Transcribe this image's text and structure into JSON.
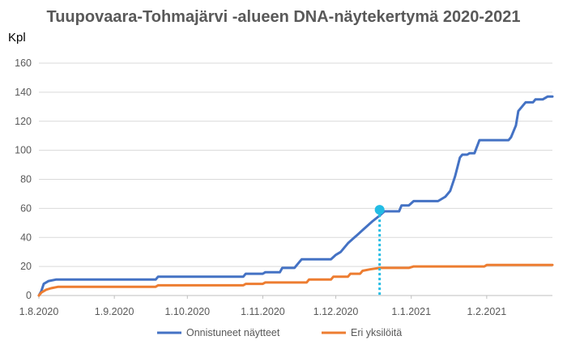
{
  "chart_data": {
    "type": "line",
    "title": "Tuupovaara-Tohmajärvi -alueen DNA-näytekertymä 2020-2021",
    "ylabel": "Kpl",
    "xlabel": "",
    "ylim": [
      0,
      160
    ],
    "yticks": [
      0,
      20,
      40,
      60,
      80,
      100,
      120,
      140,
      160
    ],
    "xlim": [
      "2020-08-01",
      "2021-02-28"
    ],
    "xticks": [
      {
        "date": "2020-08-01",
        "label": "1.8.2020"
      },
      {
        "date": "2020-09-01",
        "label": "1.9.2020"
      },
      {
        "date": "2020-10-01",
        "label": "1.10.2020"
      },
      {
        "date": "2020-11-01",
        "label": "1.11.2020"
      },
      {
        "date": "2020-12-01",
        "label": "1.12.2020"
      },
      {
        "date": "2021-01-01",
        "label": "1.1.2021"
      },
      {
        "date": "2021-02-01",
        "label": "1.2.2021"
      }
    ],
    "grid": true,
    "legend_position": "bottom",
    "series": [
      {
        "name": "Onnistuneet näytteet",
        "color": "#4472C4",
        "points": [
          [
            "2020-08-01",
            0
          ],
          [
            "2020-08-02",
            3
          ],
          [
            "2020-08-03",
            8
          ],
          [
            "2020-08-05",
            10
          ],
          [
            "2020-08-08",
            11
          ],
          [
            "2020-09-18",
            11
          ],
          [
            "2020-09-19",
            13
          ],
          [
            "2020-10-24",
            13
          ],
          [
            "2020-10-25",
            15
          ],
          [
            "2020-11-01",
            15
          ],
          [
            "2020-11-02",
            16
          ],
          [
            "2020-11-08",
            16
          ],
          [
            "2020-11-09",
            19
          ],
          [
            "2020-11-14",
            19
          ],
          [
            "2020-11-16",
            23
          ],
          [
            "2020-11-17",
            25
          ],
          [
            "2020-11-29",
            25
          ],
          [
            "2020-12-01",
            28
          ],
          [
            "2020-12-03",
            30
          ],
          [
            "2020-12-06",
            36
          ],
          [
            "2020-12-08",
            39
          ],
          [
            "2020-12-10",
            42
          ],
          [
            "2020-12-12",
            45
          ],
          [
            "2020-12-14",
            48
          ],
          [
            "2020-12-16",
            51
          ],
          [
            "2020-12-19",
            55
          ],
          [
            "2020-12-21",
            58
          ],
          [
            "2020-12-27",
            58
          ],
          [
            "2020-12-28",
            62
          ],
          [
            "2020-12-31",
            62
          ],
          [
            "2021-01-02",
            65
          ],
          [
            "2021-01-12",
            65
          ],
          [
            "2021-01-15",
            68
          ],
          [
            "2021-01-17",
            72
          ],
          [
            "2021-01-19",
            82
          ],
          [
            "2021-01-21",
            95
          ],
          [
            "2021-01-22",
            97
          ],
          [
            "2021-01-24",
            97
          ],
          [
            "2021-01-25",
            98
          ],
          [
            "2021-01-27",
            98
          ],
          [
            "2021-01-29",
            107
          ],
          [
            "2021-02-10",
            107
          ],
          [
            "2021-02-11",
            109
          ],
          [
            "2021-02-13",
            117
          ],
          [
            "2021-02-14",
            127
          ],
          [
            "2021-02-15",
            129
          ],
          [
            "2021-02-17",
            133
          ],
          [
            "2021-02-20",
            133
          ],
          [
            "2021-02-21",
            135
          ],
          [
            "2021-02-24",
            135
          ],
          [
            "2021-02-26",
            137
          ],
          [
            "2021-02-28",
            137
          ]
        ]
      },
      {
        "name": "Eri yksilöitä",
        "color": "#ED7D31",
        "points": [
          [
            "2020-08-01",
            0
          ],
          [
            "2020-08-02",
            2
          ],
          [
            "2020-08-04",
            4
          ],
          [
            "2020-08-06",
            5
          ],
          [
            "2020-08-09",
            6
          ],
          [
            "2020-09-18",
            6
          ],
          [
            "2020-09-19",
            7
          ],
          [
            "2020-10-24",
            7
          ],
          [
            "2020-10-25",
            8
          ],
          [
            "2020-11-01",
            8
          ],
          [
            "2020-11-02",
            9
          ],
          [
            "2020-11-19",
            9
          ],
          [
            "2020-11-20",
            11
          ],
          [
            "2020-11-29",
            11
          ],
          [
            "2020-11-30",
            13
          ],
          [
            "2020-12-06",
            13
          ],
          [
            "2020-12-07",
            15
          ],
          [
            "2020-12-11",
            15
          ],
          [
            "2020-12-12",
            17
          ],
          [
            "2020-12-15",
            18
          ],
          [
            "2020-12-19",
            19
          ],
          [
            "2020-12-31",
            19
          ],
          [
            "2021-01-02",
            20
          ],
          [
            "2021-01-31",
            20
          ],
          [
            "2021-02-01",
            21
          ],
          [
            "2021-02-28",
            21
          ]
        ]
      }
    ],
    "marker": {
      "date": "2020-12-19",
      "value": 59,
      "color": "#23BCE4"
    }
  }
}
